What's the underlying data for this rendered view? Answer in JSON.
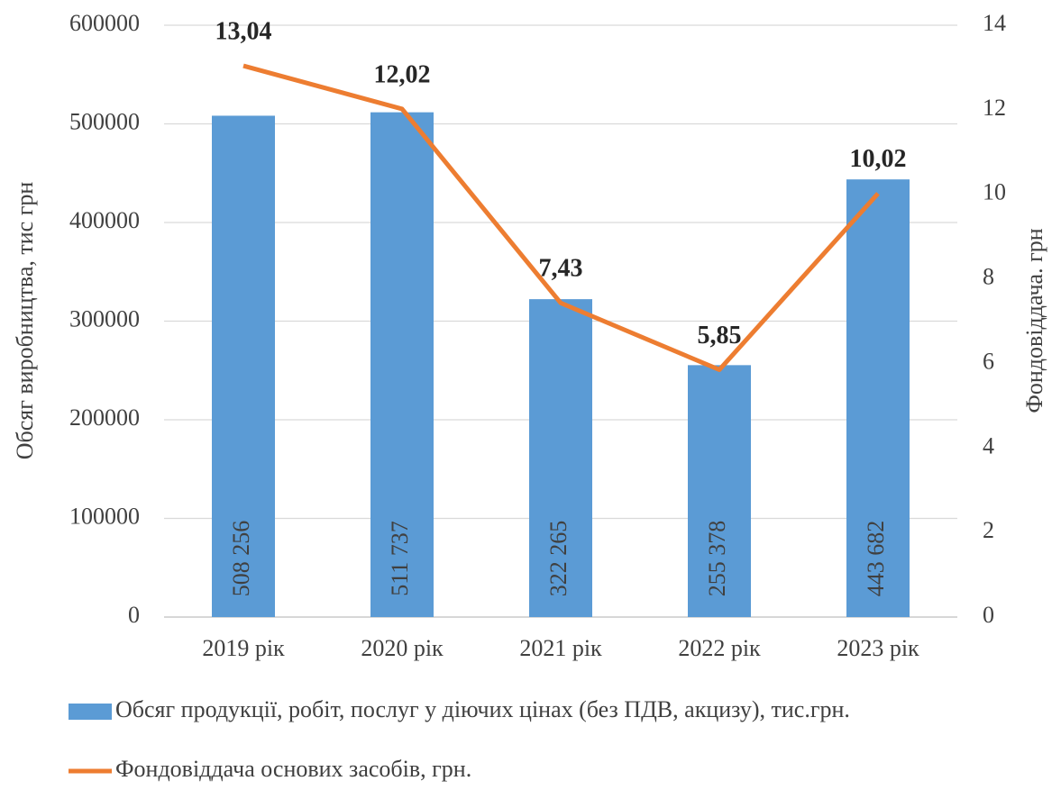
{
  "chart_data": {
    "type": "combo",
    "categories": [
      "2019 рік",
      "2020 рік",
      "2021 рік",
      "2022 рік",
      "2023 рік"
    ],
    "series": [
      {
        "name": "Обсяг продукції, робіт, послуг у діючих цінах (без ПДВ, акцизу), тис.грн.",
        "type": "bar",
        "color": "#5b9bd5",
        "values": [
          508256,
          511737,
          322265,
          255378,
          443682
        ],
        "value_labels": [
          "508 256",
          "511 737",
          "322 265",
          "255 378",
          "443 682"
        ]
      },
      {
        "name": "Фондовіддача основих засобів, грн.",
        "type": "line",
        "axis": "y2",
        "color": "#ed7d31",
        "values": [
          13.04,
          12.02,
          7.43,
          5.85,
          10.02
        ],
        "value_labels": [
          "13,04",
          "12,02",
          "7,43",
          "5,85",
          "10,02"
        ]
      }
    ],
    "ylabel": "Обсяг виробництва, тис грн",
    "y2label": "Фондовіддача. грн",
    "ylim": [
      0,
      600000
    ],
    "yticks": [
      0,
      100000,
      200000,
      300000,
      400000,
      500000,
      600000
    ],
    "y2lim": [
      0,
      14
    ],
    "y2ticks": [
      0,
      2,
      4,
      6,
      8,
      10,
      12,
      14
    ],
    "grid": true
  }
}
